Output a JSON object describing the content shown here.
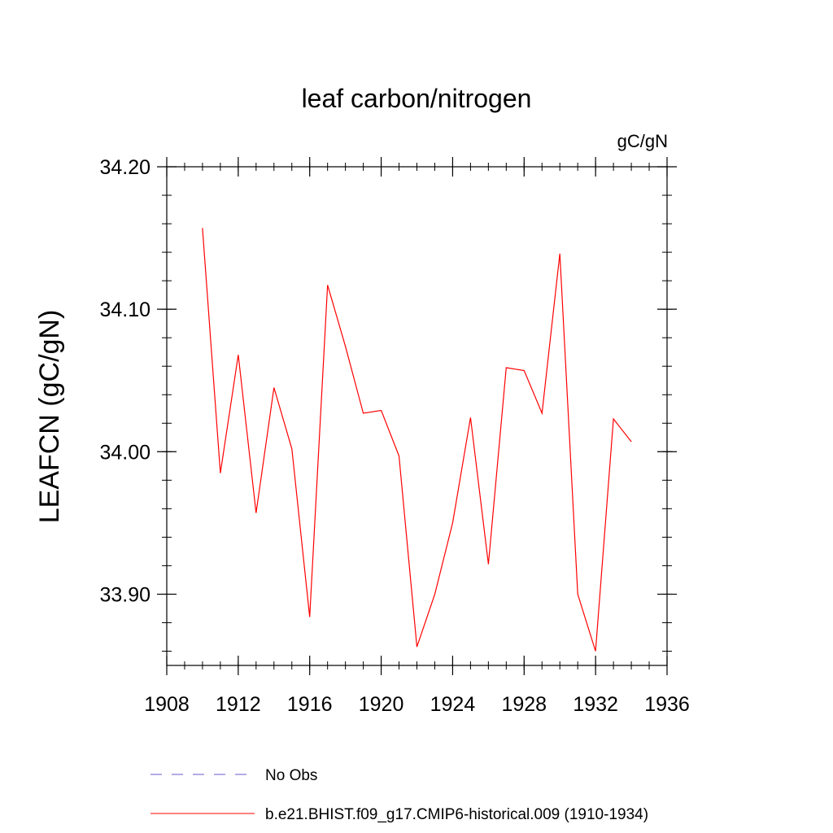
{
  "chart_data": {
    "type": "line",
    "title": "leaf carbon/nitrogen",
    "units_label": "gC/gN",
    "ylabel": "LEAFCN  (gC/gN)",
    "xlabel": "",
    "xlim": [
      1908,
      1936
    ],
    "ylim": [
      33.85,
      34.2
    ],
    "x_ticks": [
      1908,
      1912,
      1916,
      1920,
      1924,
      1928,
      1932,
      1936
    ],
    "x_tick_labels": [
      "1908",
      "1912",
      "1916",
      "1920",
      "1924",
      "1928",
      "1932",
      "1936"
    ],
    "y_ticks": [
      33.9,
      34.0,
      34.1,
      34.2
    ],
    "y_tick_labels": [
      "33.90",
      "34.00",
      "34.10",
      "34.20"
    ],
    "y_minor_step": 0.02,
    "x_minor_step": 1,
    "grid": false,
    "series": [
      {
        "name": "b.e21.BHIST.f09_g17.CMIP6-historical.009 (1910-1934)",
        "color": "#ff0000",
        "dash": "solid",
        "x": [
          1910,
          1911,
          1912,
          1913,
          1914,
          1915,
          1916,
          1917,
          1918,
          1919,
          1920,
          1921,
          1922,
          1923,
          1924,
          1925,
          1926,
          1927,
          1928,
          1929,
          1930,
          1931,
          1932,
          1933,
          1934
        ],
        "y": [
          34.157,
          33.985,
          34.068,
          33.957,
          34.045,
          34.002,
          33.884,
          34.117,
          34.074,
          34.027,
          34.029,
          33.997,
          33.863,
          33.9,
          33.95,
          34.024,
          33.921,
          34.059,
          34.057,
          34.027,
          34.139,
          33.9,
          33.86,
          34.023,
          34.007
        ]
      }
    ],
    "legend": {
      "placement": "bottom",
      "entries": [
        {
          "label": "No Obs",
          "color": "#6a5acd",
          "dash": "dashed"
        },
        {
          "label": "b.e21.BHIST.f09_g17.CMIP6-historical.009 (1910-1934)",
          "color": "#ff0000",
          "dash": "solid"
        }
      ]
    }
  }
}
